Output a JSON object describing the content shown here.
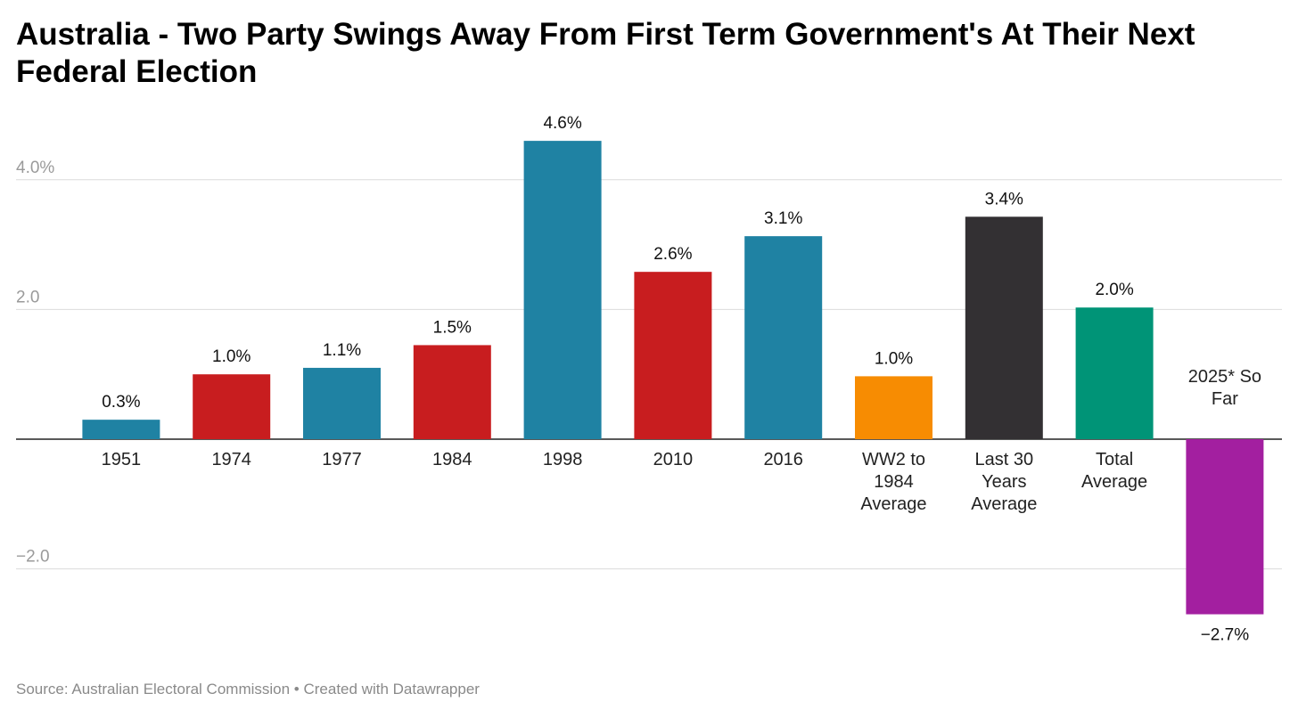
{
  "title": "Australia - Two Party Swings Away From First Term Government's At Their Next Federal Election",
  "source": "Source: Australian Electoral Commission • Created with Datawrapper",
  "chart_data": {
    "type": "bar",
    "title": "Australia - Two Party Swings Away From First Term Government's At Their Next Federal Election",
    "xlabel": "",
    "ylabel": "",
    "ylim": [
      -2.7,
      4.6
    ],
    "y_ticks": [
      {
        "value": 4.0,
        "label": "4.0%"
      },
      {
        "value": 2.0,
        "label": "2.0"
      },
      {
        "value": -2.0,
        "label": "−2.0"
      }
    ],
    "grid": true,
    "legend": "none",
    "categories": [
      [
        "1951"
      ],
      [
        "1974"
      ],
      [
        "1977"
      ],
      [
        "1984"
      ],
      [
        "1998"
      ],
      [
        "2010"
      ],
      [
        "2016"
      ],
      [
        "WW2 to",
        "1984",
        "Average"
      ],
      [
        "Last 30",
        "Years",
        "Average"
      ],
      [
        "Total",
        "Average"
      ],
      [
        "2025* So",
        "Far"
      ]
    ],
    "values": [
      0.3,
      1.0,
      1.1,
      1.45,
      4.6,
      2.58,
      3.13,
      0.97,
      3.43,
      2.03,
      -2.7
    ],
    "value_labels": [
      "0.3%",
      "1.0%",
      "1.1%",
      "1.5%",
      "4.6%",
      "2.6%",
      "3.1%",
      "1.0%",
      "3.4%",
      "2.0%",
      "−2.7%"
    ],
    "colors": [
      "#1f82a3",
      "#c81d1f",
      "#1f82a3",
      "#c81d1f",
      "#1f82a3",
      "#c81d1f",
      "#1f82a3",
      "#f78c02",
      "#333033",
      "#009477",
      "#a31fa0"
    ]
  }
}
